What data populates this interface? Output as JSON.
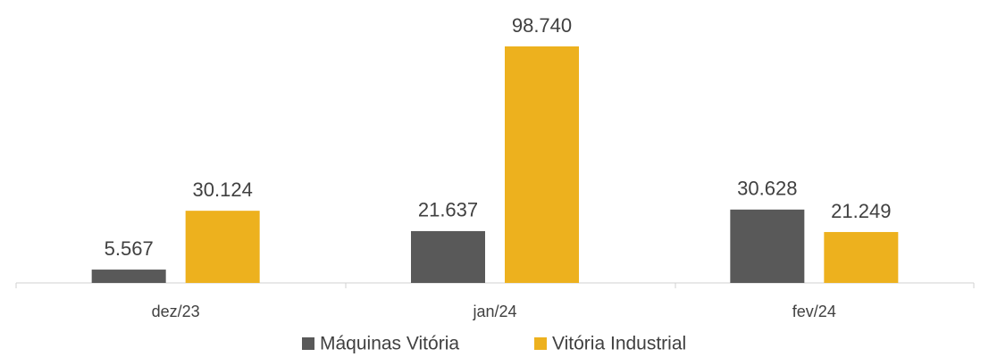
{
  "chart_data": {
    "type": "bar",
    "categories": [
      "dez/23",
      "jan/24",
      "fev/24"
    ],
    "series": [
      {
        "name": "Máquinas Vitória",
        "color": "#595959",
        "values": [
          5567,
          21637,
          30628
        ],
        "value_labels": [
          "5.567",
          "21.637",
          "30.628"
        ]
      },
      {
        "name": "Vitória Industrial",
        "color": "#edb11e",
        "values": [
          30124,
          98740,
          21249
        ],
        "value_labels": [
          "30.124",
          "98.740",
          "21.249"
        ]
      }
    ],
    "legend": "bottom"
  }
}
